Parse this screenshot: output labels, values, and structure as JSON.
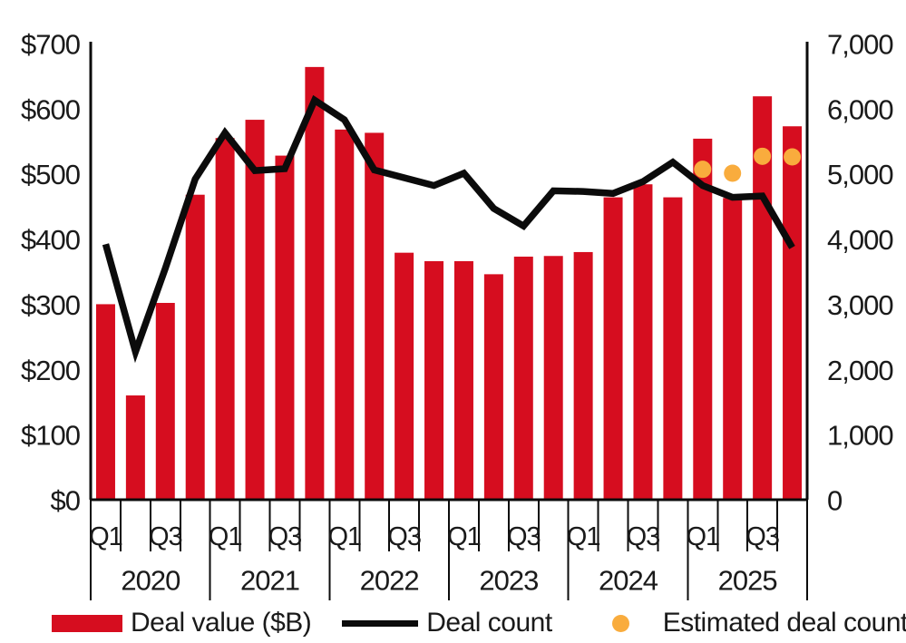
{
  "chart_data": {
    "type": "bar",
    "title": "",
    "categories": [
      "2020 Q1",
      "2020 Q2",
      "2020 Q3",
      "2020 Q4",
      "2021 Q1",
      "2021 Q2",
      "2021 Q3",
      "2021 Q4",
      "2022 Q1",
      "2022 Q2",
      "2022 Q3",
      "2022 Q4",
      "2023 Q1",
      "2023 Q2",
      "2023 Q3",
      "2023 Q4",
      "2024 Q1",
      "2024 Q2",
      "2024 Q3",
      "2024 Q4",
      "2025 Q1",
      "2025 Q2",
      "2025 Q3",
      "2025 Q4"
    ],
    "x_axis": {
      "year_labels": [
        "2020",
        "2021",
        "2022",
        "2023",
        "2024",
        "2025"
      ],
      "quarter_tick_labels": [
        "Q1",
        "Q3"
      ]
    },
    "left_axis": {
      "min": 0,
      "max": 700,
      "tick_labels": [
        "$0",
        "$100",
        "$200",
        "$300",
        "$400",
        "$500",
        "$600",
        "$700"
      ]
    },
    "right_axis": {
      "min": 0,
      "max": 7000,
      "tick_labels": [
        "0",
        "1,000",
        "2,000",
        "3,000",
        "4,000",
        "5,000",
        "6,000",
        "7,000"
      ]
    },
    "grid": false,
    "legend_position": "bottom",
    "series": [
      {
        "name": "Deal value ($B)",
        "type": "bar",
        "axis": "left",
        "color": "#d60d1f",
        "values": [
          300,
          160,
          302,
          468,
          555,
          583,
          528,
          664,
          568,
          563,
          379,
          366,
          366,
          346,
          373,
          374,
          380,
          464,
          484,
          464,
          554,
          463,
          619,
          573
        ]
      },
      {
        "name": "Deal count",
        "type": "line",
        "axis": "right",
        "color": "#0b0b0b",
        "values": [
          3920,
          2270,
          3550,
          4920,
          5630,
          5050,
          5080,
          6130,
          5830,
          5060,
          4940,
          4820,
          5010,
          4470,
          4200,
          4740,
          4730,
          4700,
          4880,
          5180,
          4820,
          4640,
          4660,
          3870
        ]
      },
      {
        "name": "Estimated deal count",
        "type": "scatter",
        "axis": "right",
        "color": "#f9ac3d",
        "categories": [
          "2025 Q1",
          "2025 Q2",
          "2025 Q3",
          "2025 Q4"
        ],
        "values": [
          5070,
          5010,
          5270,
          5260
        ]
      }
    ]
  }
}
